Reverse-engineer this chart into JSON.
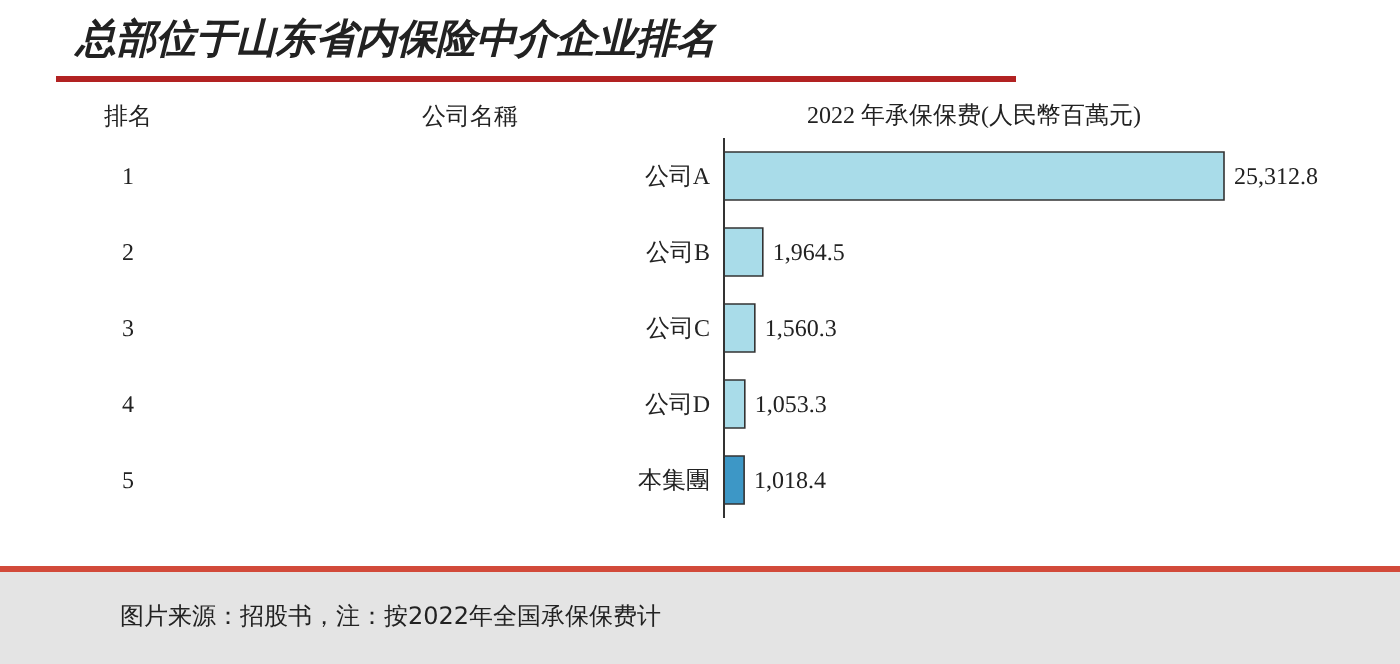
{
  "chart_data": {
    "type": "bar",
    "orientation": "horizontal",
    "title": "总部位于山东省内保险中介企业排名",
    "xlabel": "2022 年承保保费(人民幣百萬元)",
    "categories": [
      "公司A",
      "公司B",
      "公司C",
      "公司D",
      "本集團"
    ],
    "values": [
      25312.8,
      1964.5,
      1560.3,
      1053.3,
      1018.4
    ],
    "colors": [
      "#a9dce9",
      "#a9dce9",
      "#a9dce9",
      "#a9dce9",
      "#3d97c6"
    ],
    "value_labels": [
      "25,312.8",
      "1,964.5",
      "1,560.3",
      "1,053.3",
      "1,018.4"
    ],
    "annotations": [
      "排名",
      "公司名稱",
      "1",
      "2",
      "3",
      "4",
      "5",
      "图片来源：招股书，注：按2022年全国承保保费计"
    ]
  }
}
